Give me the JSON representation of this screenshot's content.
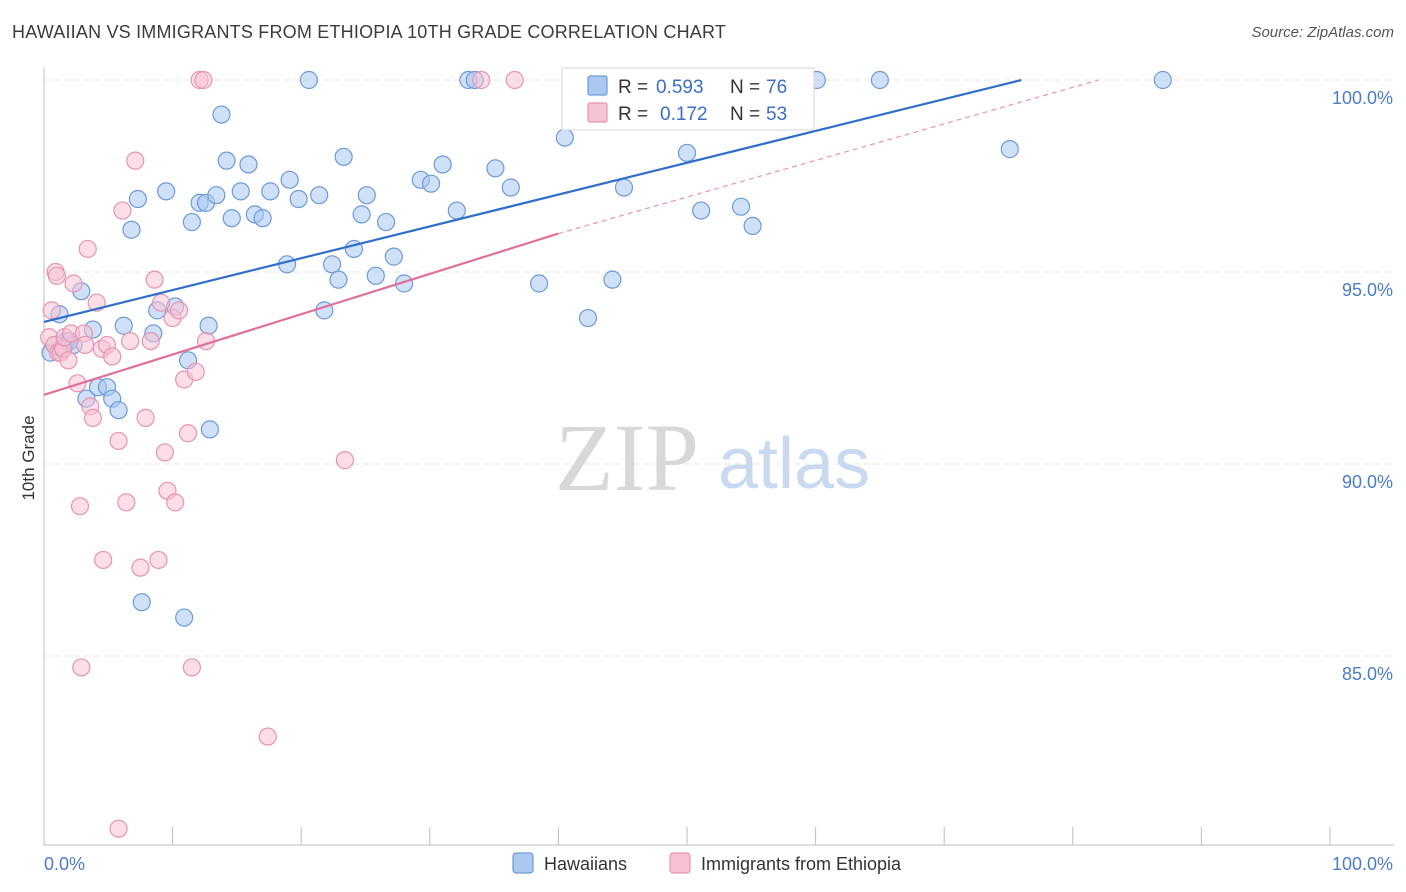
{
  "title": "HAWAIIAN VS IMMIGRANTS FROM ETHIOPIA 10TH GRADE CORRELATION CHART",
  "source": "Source: ZipAtlas.com",
  "watermark": {
    "zip": "ZIP",
    "atlas": "atlas"
  },
  "colors": {
    "blue_fill": "#aac8f0",
    "blue_stroke": "#6c9ad8",
    "blue_line": "#2f6fc9",
    "pink_fill": "#f7c2d3",
    "pink_stroke": "#e893b1",
    "pink_line": "#e07098",
    "axis_text": "#4a7cc7",
    "grid": "#e6e6e6"
  },
  "legend": {
    "rows": [
      {
        "r_label": "R =",
        "r_value": "0.593",
        "n_label": "N =",
        "n_value": "76"
      },
      {
        "r_label": "R =",
        "r_value": "0.172",
        "n_label": "N =",
        "n_value": "53"
      }
    ]
  },
  "bottom_legend": [
    "Hawaiians",
    "Immigrants from Ethiopia"
  ],
  "chart_data": {
    "type": "scatter",
    "title": "HAWAIIAN VS IMMIGRANTS FROM ETHIOPIA 10TH GRADE CORRELATION CHART",
    "xlabel": "",
    "ylabel": "10th Grade",
    "xlim": [
      0,
      100
    ],
    "ylim": [
      80.5,
      100.4
    ],
    "x_tick_labels": [
      "0.0%",
      "100.0%"
    ],
    "y_ticks": [
      85,
      90,
      95,
      100
    ],
    "y_tick_labels": [
      "85.0%",
      "90.0%",
      "95.0%",
      "100.0%"
    ],
    "grid": true,
    "legend_position": "top-center",
    "series": [
      {
        "name": "Hawaiians",
        "R": 0.593,
        "N": 76,
        "trend": {
          "x": [
            0,
            76
          ],
          "y": [
            93.7,
            100.0
          ]
        },
        "points": [
          [
            0.5,
            92.9
          ],
          [
            0.8,
            93.1
          ],
          [
            1.2,
            93.9
          ],
          [
            1.4,
            93.0
          ],
          [
            1.7,
            93.2
          ],
          [
            2.0,
            93.2
          ],
          [
            2.3,
            93.1
          ],
          [
            2.9,
            94.5
          ],
          [
            3.3,
            91.7
          ],
          [
            3.8,
            93.5
          ],
          [
            4.2,
            92.0
          ],
          [
            4.9,
            92.0
          ],
          [
            5.3,
            91.7
          ],
          [
            5.8,
            91.4
          ],
          [
            6.2,
            93.6
          ],
          [
            6.8,
            96.1
          ],
          [
            7.3,
            96.9
          ],
          [
            7.6,
            86.4
          ],
          [
            8.5,
            93.4
          ],
          [
            8.8,
            94.0
          ],
          [
            9.5,
            97.1
          ],
          [
            10.2,
            94.1
          ],
          [
            10.9,
            86.0
          ],
          [
            11.2,
            92.7
          ],
          [
            11.5,
            96.3
          ],
          [
            12.1,
            96.8
          ],
          [
            12.6,
            96.8
          ],
          [
            12.8,
            93.6
          ],
          [
            12.9,
            90.9
          ],
          [
            13.4,
            97.0
          ],
          [
            13.8,
            99.1
          ],
          [
            14.2,
            97.9
          ],
          [
            14.6,
            96.4
          ],
          [
            15.3,
            97.1
          ],
          [
            15.9,
            97.8
          ],
          [
            16.4,
            96.5
          ],
          [
            17.0,
            96.4
          ],
          [
            17.6,
            97.1
          ],
          [
            18.9,
            95.2
          ],
          [
            19.1,
            97.4
          ],
          [
            19.8,
            96.9
          ],
          [
            20.6,
            100.0
          ],
          [
            21.4,
            97.0
          ],
          [
            21.8,
            94.0
          ],
          [
            22.4,
            95.2
          ],
          [
            22.9,
            94.8
          ],
          [
            23.3,
            98.0
          ],
          [
            24.1,
            95.6
          ],
          [
            24.7,
            96.5
          ],
          [
            25.1,
            97.0
          ],
          [
            25.8,
            94.9
          ],
          [
            26.6,
            96.3
          ],
          [
            27.2,
            95.4
          ],
          [
            28.0,
            94.7
          ],
          [
            29.3,
            97.4
          ],
          [
            30.1,
            97.3
          ],
          [
            31.0,
            97.8
          ],
          [
            32.1,
            96.6
          ],
          [
            33.0,
            100.0
          ],
          [
            33.5,
            100.0
          ],
          [
            35.1,
            97.7
          ],
          [
            36.3,
            97.2
          ],
          [
            38.5,
            94.7
          ],
          [
            40.5,
            98.5
          ],
          [
            42.3,
            93.8
          ],
          [
            44.2,
            94.8
          ],
          [
            45.1,
            97.2
          ],
          [
            46.2,
            100.0
          ],
          [
            50.0,
            98.1
          ],
          [
            51.1,
            96.6
          ],
          [
            54.2,
            96.7
          ],
          [
            55.1,
            96.2
          ],
          [
            60.1,
            100.0
          ],
          [
            65.0,
            100.0
          ],
          [
            75.1,
            98.2
          ],
          [
            87.0,
            100.0
          ]
        ]
      },
      {
        "name": "Immigrants from Ethiopia",
        "R": 0.172,
        "N": 53,
        "trend": {
          "x": [
            0,
            40
          ],
          "y": [
            91.8,
            96.0
          ]
        },
        "trend_extended": {
          "x": [
            40,
            82
          ],
          "y": [
            96.0,
            100.0
          ]
        },
        "points": [
          [
            0.4,
            93.3
          ],
          [
            0.6,
            94.0
          ],
          [
            0.8,
            93.1
          ],
          [
            0.9,
            95.0
          ],
          [
            1.0,
            94.9
          ],
          [
            1.1,
            92.9
          ],
          [
            1.3,
            92.9
          ],
          [
            1.5,
            93.0
          ],
          [
            1.6,
            93.3
          ],
          [
            1.9,
            92.7
          ],
          [
            2.1,
            93.4
          ],
          [
            2.3,
            94.7
          ],
          [
            2.6,
            92.1
          ],
          [
            2.8,
            88.9
          ],
          [
            2.9,
            84.7
          ],
          [
            3.1,
            93.4
          ],
          [
            3.2,
            93.1
          ],
          [
            3.4,
            95.6
          ],
          [
            3.6,
            91.5
          ],
          [
            3.8,
            91.2
          ],
          [
            4.1,
            94.2
          ],
          [
            4.5,
            93.0
          ],
          [
            4.6,
            87.5
          ],
          [
            4.9,
            93.1
          ],
          [
            5.3,
            92.8
          ],
          [
            5.8,
            90.6
          ],
          [
            6.1,
            96.6
          ],
          [
            6.4,
            89.0
          ],
          [
            6.7,
            93.2
          ],
          [
            7.1,
            97.9
          ],
          [
            7.5,
            87.3
          ],
          [
            7.9,
            91.2
          ],
          [
            8.3,
            93.2
          ],
          [
            8.6,
            94.8
          ],
          [
            8.9,
            87.5
          ],
          [
            9.1,
            94.2
          ],
          [
            9.4,
            90.3
          ],
          [
            9.6,
            89.3
          ],
          [
            10.0,
            93.8
          ],
          [
            10.2,
            89.0
          ],
          [
            10.5,
            94.0
          ],
          [
            10.9,
            92.2
          ],
          [
            11.2,
            90.8
          ],
          [
            11.5,
            84.7
          ],
          [
            11.8,
            92.4
          ],
          [
            12.1,
            100.0
          ],
          [
            12.4,
            100.0
          ],
          [
            12.6,
            93.2
          ],
          [
            17.4,
            82.9
          ],
          [
            23.4,
            90.1
          ],
          [
            34.0,
            100.0
          ],
          [
            36.6,
            100.0
          ],
          [
            5.8,
            80.5
          ]
        ]
      }
    ]
  }
}
